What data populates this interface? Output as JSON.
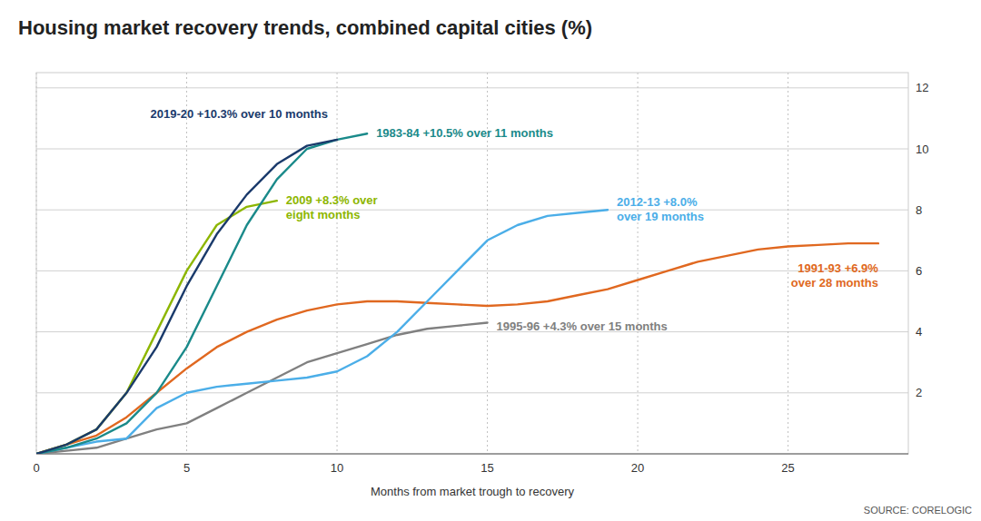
{
  "chart_data": {
    "type": "line",
    "title": "Housing market recovery trends, combined capital cities (%)",
    "xlabel": "Months from market trough to recovery",
    "source": "SOURCE: CORELOGIC",
    "xlim": [
      0,
      29
    ],
    "ylim": [
      0,
      12.5
    ],
    "xticks": [
      0,
      5,
      10,
      15,
      20,
      25
    ],
    "yticks": [
      2,
      4,
      6,
      8,
      10,
      12
    ],
    "grid": true,
    "series": [
      {
        "color": "#e06820",
        "x": [
          0,
          1,
          2,
          3,
          4,
          5,
          6,
          7,
          8,
          9,
          10,
          11,
          12,
          13,
          14,
          15,
          16,
          17,
          18,
          19,
          20,
          21,
          22,
          23,
          24,
          25,
          26,
          27,
          28
        ],
        "values": [
          0,
          0.3,
          0.6,
          1.2,
          2.0,
          2.8,
          3.5,
          4.0,
          4.4,
          4.7,
          4.9,
          5.0,
          5.0,
          4.95,
          4.9,
          4.85,
          4.9,
          5.0,
          5.2,
          5.4,
          5.7,
          6.0,
          6.3,
          6.5,
          6.7,
          6.8,
          6.85,
          6.9,
          6.9
        ]
      },
      {
        "color": "#808080",
        "x": [
          0,
          1,
          2,
          3,
          4,
          5,
          6,
          7,
          8,
          9,
          10,
          11,
          12,
          13,
          14,
          15
        ],
        "values": [
          0,
          0.1,
          0.2,
          0.5,
          0.8,
          1.0,
          1.5,
          2.0,
          2.5,
          3.0,
          3.3,
          3.6,
          3.9,
          4.1,
          4.2,
          4.3
        ]
      },
      {
        "color": "#4baee8",
        "x": [
          0,
          1,
          2,
          3,
          4,
          5,
          6,
          7,
          8,
          9,
          10,
          11,
          12,
          13,
          14,
          15,
          16,
          17,
          18,
          19
        ],
        "values": [
          0,
          0.2,
          0.4,
          0.5,
          1.5,
          2.0,
          2.2,
          2.3,
          2.4,
          2.5,
          2.7,
          3.2,
          4.0,
          5.0,
          6.0,
          7.0,
          7.5,
          7.8,
          7.9,
          8.0
        ]
      },
      {
        "color": "#8db600",
        "x": [
          0,
          1,
          2,
          3,
          4,
          5,
          6,
          7,
          8
        ],
        "values": [
          0,
          0.3,
          0.8,
          2.0,
          4.0,
          6.0,
          7.5,
          8.1,
          8.3
        ]
      },
      {
        "color": "#1a8a8a",
        "x": [
          0,
          1,
          2,
          3,
          4,
          5,
          6,
          7,
          8,
          9,
          10,
          11
        ],
        "values": [
          0,
          0.2,
          0.5,
          1.0,
          2.0,
          3.5,
          5.5,
          7.5,
          9.0,
          10.0,
          10.3,
          10.5
        ]
      },
      {
        "color": "#1a3a6b",
        "x": [
          0,
          1,
          2,
          3,
          4,
          5,
          6,
          7,
          8,
          9,
          10
        ],
        "values": [
          0,
          0.3,
          0.8,
          2.0,
          3.5,
          5.5,
          7.2,
          8.5,
          9.5,
          10.1,
          10.3
        ]
      }
    ],
    "annotations": [
      {
        "text": "2019-20 +10.3% over 10 months",
        "color": "#1a3a6b"
      },
      {
        "text": "1983-84 +10.5% over 11 months",
        "color": "#1a8a8a"
      },
      {
        "text": "2009 +8.3% over\neight months",
        "color": "#8db600"
      },
      {
        "text": "2012-13 +8.0%\nover 19 months",
        "color": "#4baee8"
      },
      {
        "text": "1991-93 +6.9%\nover 28 months",
        "color": "#e06820"
      },
      {
        "text": "1995-96 +4.3% over 15 months",
        "color": "#808080"
      }
    ]
  }
}
